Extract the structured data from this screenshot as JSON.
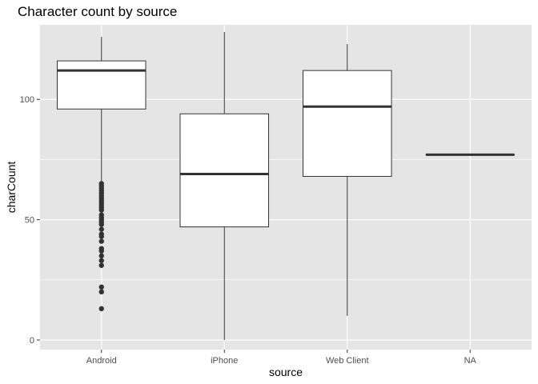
{
  "chart_data": {
    "type": "boxplot",
    "title": "Character count by source",
    "xlabel": "source",
    "ylabel": "charCount",
    "categories": [
      "Android",
      "iPhone",
      "Web Client",
      "NA"
    ],
    "ylim": [
      -4,
      131
    ],
    "yticks": [
      0,
      50,
      100
    ],
    "grid": true,
    "colors": {
      "panel": "#e5e5e5",
      "grid_major": "#ffffff",
      "box_fill": "#ffffff",
      "box_line": "#333333",
      "tick_label": "#4d4d4d"
    },
    "boxes": [
      {
        "category": "Android",
        "whisker_low": 66,
        "q1": 96,
        "median": 112,
        "q3": 116,
        "whisker_high": 126,
        "outliers": [
          65,
          64,
          63,
          62,
          61,
          60,
          59,
          58,
          57,
          56,
          55,
          54,
          52,
          51,
          50,
          49,
          48,
          46,
          44,
          43,
          41,
          38,
          37,
          35,
          33,
          31,
          22,
          20,
          13
        ]
      },
      {
        "category": "iPhone",
        "whisker_low": 0,
        "q1": 47,
        "median": 69,
        "q3": 94,
        "whisker_high": 128,
        "outliers": []
      },
      {
        "category": "Web Client",
        "whisker_low": 10,
        "q1": 68,
        "median": 97,
        "q3": 112,
        "whisker_high": 123,
        "outliers": []
      },
      {
        "category": "NA",
        "whisker_low": 77,
        "q1": 77,
        "median": 77,
        "q3": 77,
        "whisker_high": 77,
        "outliers": []
      }
    ]
  }
}
